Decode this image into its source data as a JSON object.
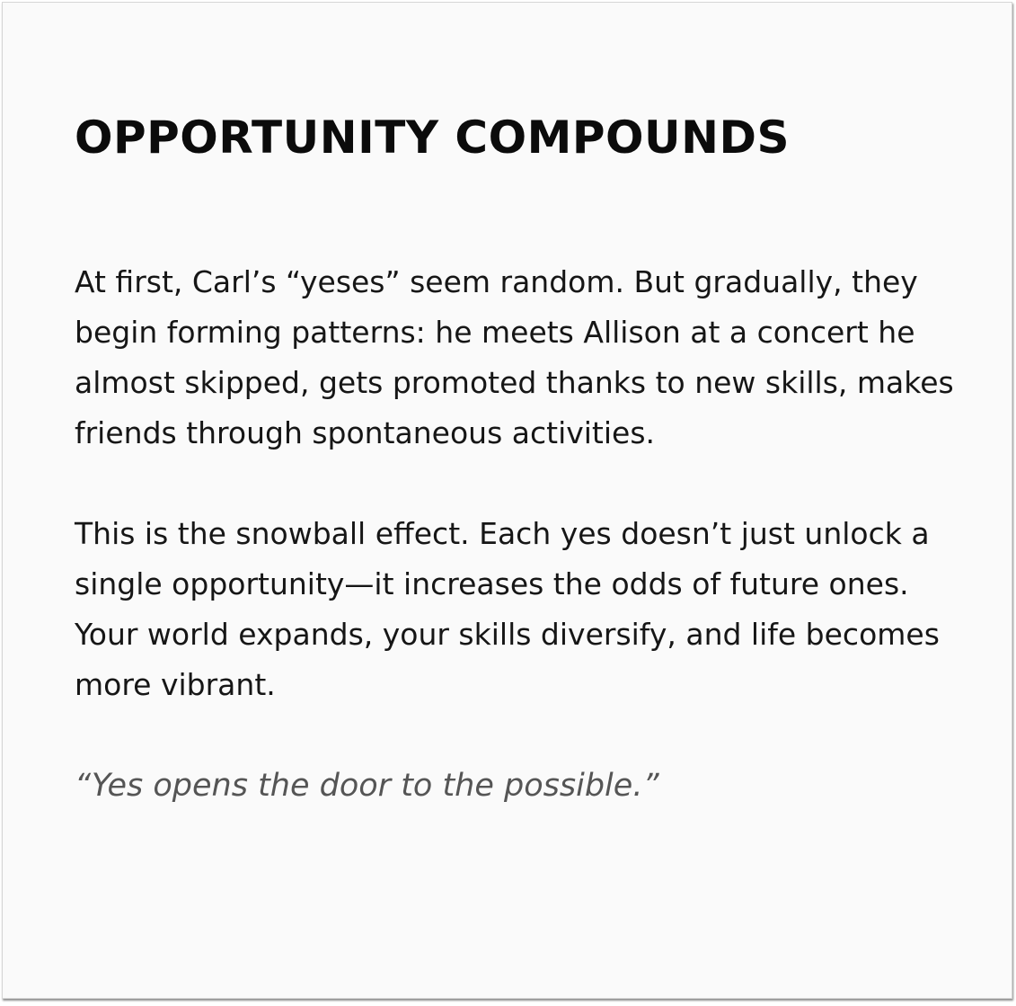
{
  "page": {
    "title": "OPPORTUNITY COMPOUNDS",
    "paragraphs": [
      "At first, Carl’s “yeses” seem random. But gradually, they begin forming patterns: he meets Allison at a concert he almost skipped, gets promoted thanks to new skills, makes friends through spontaneous activities.",
      "This is the snowball effect. Each yes doesn’t just unlock a single opportunity—it increases the odds of future ones. Your world expands, your skills diversify, and life becomes more vibrant."
    ],
    "quote": "“Yes opens the door to the possible.”"
  }
}
